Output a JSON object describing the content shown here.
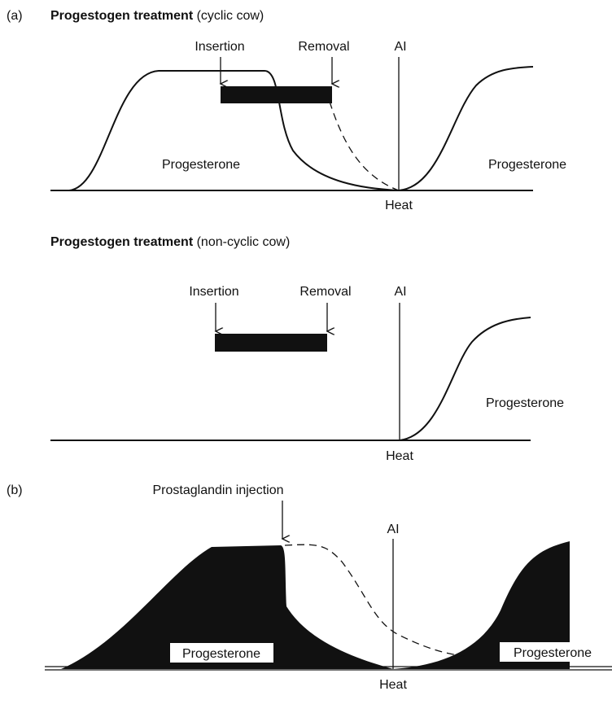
{
  "panels": [
    {
      "label": "(a)",
      "title": "Progestogen treatment",
      "subtitle": "(cyclic cow)",
      "insertion": "Insertion",
      "removal": "Removal",
      "ai": "AI",
      "hormone_left": "Progesterone",
      "hormone_right": "Progesterone",
      "heat": "Heat"
    },
    {
      "title": "Progestogen treatment",
      "subtitle": "(non-cyclic cow)",
      "insertion": "Insertion",
      "removal": "Removal",
      "ai": "AI",
      "hormone_right": "Progesterone",
      "heat": "Heat"
    },
    {
      "label": "(b)",
      "injection": "Prostaglandin injection",
      "ai": "AI",
      "hormone_left": "Progesterone",
      "hormone_right": "Progesterone",
      "heat": "Heat"
    }
  ]
}
